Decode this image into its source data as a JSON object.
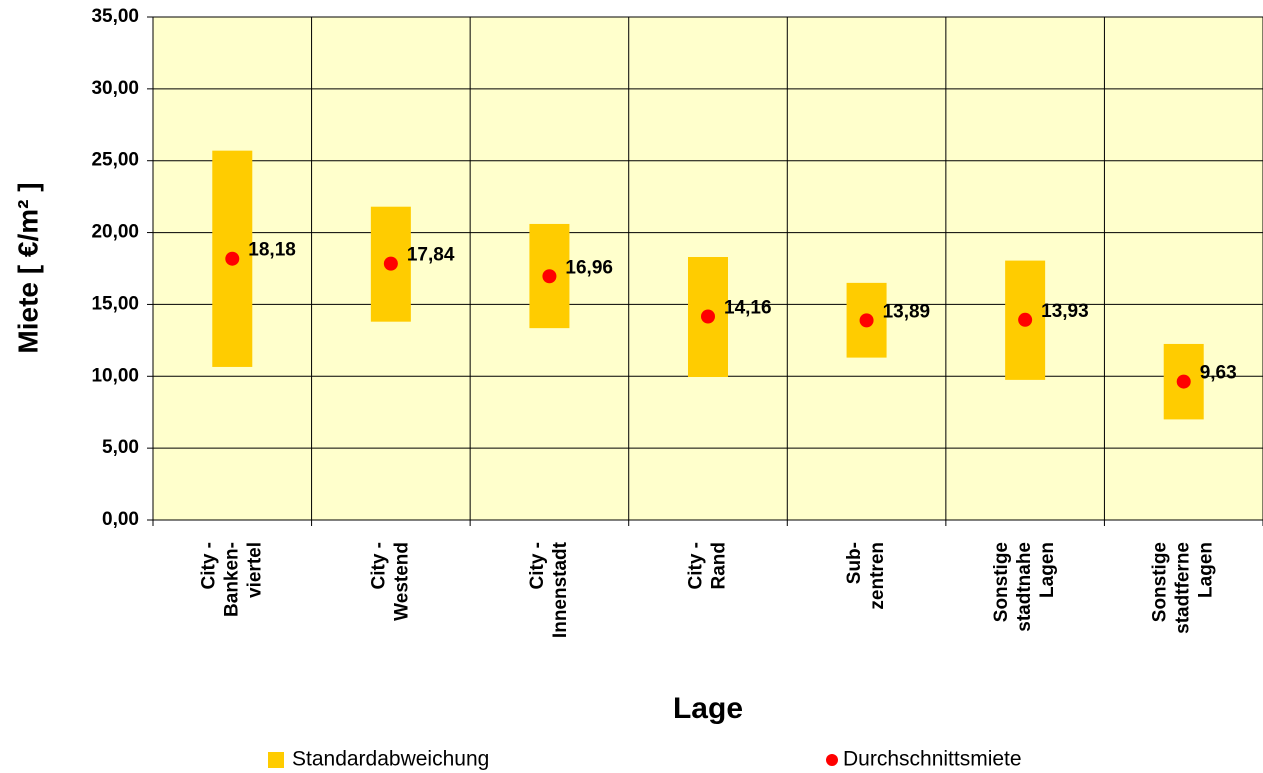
{
  "chart_data": {
    "type": "range",
    "y_label": "Miete [ €/m² ]",
    "x_label": "Lage",
    "categories": [
      "City -\nBanken-\nviertel",
      "City -\nWestend",
      "City -\nInnenstadt",
      "City -\nRand",
      "Sub-\nzentren",
      "Sonstige\nstadtnahe\nLagen",
      "Sonstige\nstadtferne\nLagen"
    ],
    "series": [
      {
        "name": "Standardabweichung",
        "color": "#ffcc00",
        "low": [
          10.65,
          13.8,
          13.35,
          9.95,
          11.3,
          9.75,
          7.0
        ],
        "high": [
          25.7,
          21.8,
          20.6,
          18.3,
          16.5,
          18.05,
          12.25
        ]
      },
      {
        "name": "Durchschnittsmiete",
        "color": "#ff0000",
        "values": [
          18.18,
          17.84,
          16.96,
          14.16,
          13.89,
          13.93,
          9.63
        ],
        "value_labels": [
          "18,18",
          "17,84",
          "16,96",
          "14,16",
          "13,89",
          "13,93",
          "9,63"
        ]
      }
    ],
    "ylim": [
      0,
      35
    ],
    "yticks": [
      {
        "value": 0,
        "label": "0,00"
      },
      {
        "value": 5,
        "label": "5,00"
      },
      {
        "value": 10,
        "label": "10,00"
      },
      {
        "value": 15,
        "label": "15,00"
      },
      {
        "value": 20,
        "label": "20,00"
      },
      {
        "value": 25,
        "label": "25,00"
      },
      {
        "value": 30,
        "label": "30,00"
      },
      {
        "value": 35,
        "label": "35,00"
      }
    ],
    "grid": true,
    "plot_background": "#ffffcc"
  }
}
